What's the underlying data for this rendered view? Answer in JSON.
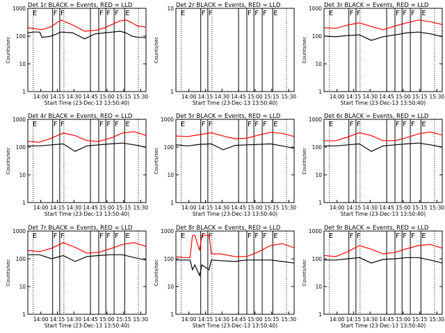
{
  "chart_data": [
    {
      "type": "line",
      "title": "Det 1r BLACK = Events, RED = LLD",
      "flags": [
        "E",
        "F",
        "F",
        "F",
        "F",
        "F",
        "E"
      ],
      "series": [
        {
          "color": "#ff0000",
          "x": [
            0.0,
            0.12,
            0.2,
            0.28,
            0.38,
            0.48,
            0.57,
            0.65,
            0.72,
            0.78,
            0.83,
            0.88,
            0.93,
            0.97,
            1.0
          ],
          "y": [
            200,
            170,
            220,
            380,
            250,
            150,
            160,
            200,
            270,
            350,
            380,
            300,
            230,
            220,
            210
          ]
        },
        {
          "color": "#000000",
          "x": [
            0.0,
            0.05,
            0.1,
            0.12,
            0.2,
            0.28,
            0.38,
            0.48,
            0.57,
            0.65,
            0.72,
            0.78,
            0.83,
            0.88,
            0.93,
            0.97,
            1.0
          ],
          "y": [
            130,
            140,
            140,
            90,
            100,
            140,
            130,
            80,
            120,
            130,
            140,
            150,
            130,
            100,
            90,
            90,
            85
          ]
        }
      ]
    },
    {
      "type": "line",
      "title": "Det 2r BLACK = Events, RED = LLD",
      "flags": [
        "E",
        "F",
        "F",
        "F",
        "F",
        "F",
        "E"
      ],
      "series": []
    },
    {
      "type": "line",
      "title": "Det 3r BLACK = Events, RED = LLD",
      "flags": [
        "E",
        "F",
        "F",
        "F",
        "F",
        "F",
        "E"
      ],
      "series": [
        {
          "color": "#ff0000",
          "x": [
            0.0,
            0.1,
            0.2,
            0.3,
            0.4,
            0.5,
            0.6,
            0.7,
            0.8,
            0.9,
            1.0
          ],
          "y": [
            200,
            190,
            250,
            300,
            220,
            170,
            230,
            300,
            380,
            330,
            260
          ]
        },
        {
          "color": "#000000",
          "x": [
            0.0,
            0.1,
            0.2,
            0.3,
            0.4,
            0.5,
            0.6,
            0.7,
            0.8,
            0.9,
            1.0
          ],
          "y": [
            100,
            95,
            105,
            110,
            70,
            95,
            110,
            130,
            140,
            120,
            95
          ]
        }
      ]
    },
    {
      "type": "line",
      "title": "Det 4r BLACK = Events, RED = LLD",
      "flags": [
        "E",
        "F",
        "F",
        "F",
        "F",
        "F",
        "E"
      ],
      "series": [
        {
          "color": "#ff0000",
          "x": [
            0.0,
            0.1,
            0.2,
            0.3,
            0.4,
            0.5,
            0.6,
            0.7,
            0.8,
            0.9,
            1.0
          ],
          "y": [
            160,
            150,
            210,
            320,
            260,
            170,
            160,
            210,
            320,
            360,
            260
          ]
        },
        {
          "color": "#000000",
          "x": [
            0.0,
            0.1,
            0.2,
            0.3,
            0.4,
            0.5,
            0.6,
            0.7,
            0.8,
            0.9,
            1.0
          ],
          "y": [
            110,
            110,
            120,
            130,
            70,
            110,
            120,
            130,
            140,
            120,
            100
          ]
        }
      ]
    },
    {
      "type": "line",
      "title": "Det 5r BLACK = Events, RED = LLD",
      "flags": [
        "E",
        "F",
        "F",
        "F",
        "F",
        "F",
        "E"
      ],
      "series": [
        {
          "color": "#ff0000",
          "x": [
            0.0,
            0.1,
            0.2,
            0.3,
            0.4,
            0.5,
            0.6,
            0.7,
            0.8,
            0.9,
            1.0
          ],
          "y": [
            250,
            240,
            280,
            330,
            250,
            200,
            210,
            270,
            340,
            310,
            240
          ]
        },
        {
          "color": "#000000",
          "x": [
            0.0,
            0.1,
            0.2,
            0.3,
            0.4,
            0.5,
            0.6,
            0.7,
            0.8,
            0.9,
            1.0
          ],
          "y": [
            120,
            110,
            125,
            130,
            80,
            115,
            120,
            125,
            130,
            110,
            90
          ]
        }
      ]
    },
    {
      "type": "line",
      "title": "Det 6r BLACK = Events, RED = LLD",
      "flags": [
        "E",
        "F",
        "F",
        "F",
        "F",
        "F",
        "E"
      ],
      "series": [
        {
          "color": "#ff0000",
          "x": [
            0.0,
            0.1,
            0.2,
            0.3,
            0.4,
            0.5,
            0.6,
            0.7,
            0.8,
            0.9,
            1.0
          ],
          "y": [
            170,
            170,
            230,
            330,
            260,
            170,
            170,
            220,
            300,
            350,
            270
          ]
        },
        {
          "color": "#000000",
          "x": [
            0.0,
            0.1,
            0.2,
            0.3,
            0.4,
            0.5,
            0.6,
            0.7,
            0.8,
            0.9,
            1.0
          ],
          "y": [
            110,
            110,
            120,
            130,
            70,
            110,
            120,
            130,
            140,
            120,
            100
          ]
        }
      ]
    },
    {
      "type": "line",
      "title": "Det 7r BLACK = Events, RED = LLD",
      "flags": [
        "E",
        "F",
        "F",
        "F",
        "F",
        "F",
        "E"
      ],
      "series": [
        {
          "color": "#ff0000",
          "x": [
            0.0,
            0.1,
            0.2,
            0.3,
            0.4,
            0.5,
            0.6,
            0.7,
            0.8,
            0.9,
            1.0
          ],
          "y": [
            200,
            180,
            240,
            380,
            260,
            160,
            170,
            230,
            330,
            380,
            280
          ]
        },
        {
          "color": "#000000",
          "x": [
            0.0,
            0.1,
            0.2,
            0.3,
            0.4,
            0.5,
            0.6,
            0.7,
            0.8,
            0.9,
            1.0
          ],
          "y": [
            140,
            140,
            100,
            130,
            80,
            120,
            130,
            140,
            140,
            110,
            90
          ]
        }
      ]
    },
    {
      "type": "line",
      "title": "Det 8r BLACK = Events, RED = LLD",
      "flags": [
        "E",
        "F",
        "F",
        "F",
        "F",
        "F",
        "E"
      ],
      "series": [
        {
          "color": "#ff0000",
          "x": [
            0.0,
            0.06,
            0.12,
            0.14,
            0.16,
            0.2,
            0.22,
            0.28,
            0.3,
            0.38,
            0.5,
            0.6,
            0.7,
            0.8,
            0.9,
            1.0
          ],
          "y": [
            120,
            110,
            110,
            700,
            700,
            200,
            700,
            700,
            150,
            150,
            120,
            120,
            180,
            300,
            350,
            250
          ]
        },
        {
          "color": "#000000",
          "x": [
            0.0,
            0.06,
            0.12,
            0.14,
            0.16,
            0.2,
            0.22,
            0.28,
            0.3,
            0.38,
            0.5,
            0.6,
            0.7,
            0.8,
            0.9,
            1.0
          ],
          "y": [
            90,
            90,
            90,
            40,
            60,
            25,
            60,
            40,
            90,
            85,
            80,
            90,
            90,
            90,
            80,
            70
          ]
        }
      ]
    },
    {
      "type": "line",
      "title": "Det 9r BLACK = Events, RED = LLD",
      "flags": [
        "E",
        "F",
        "F",
        "F",
        "F",
        "F",
        "E"
      ],
      "series": [
        {
          "color": "#ff0000",
          "x": [
            0.0,
            0.1,
            0.2,
            0.3,
            0.4,
            0.5,
            0.6,
            0.7,
            0.8,
            0.9,
            1.0
          ],
          "y": [
            130,
            120,
            180,
            300,
            220,
            150,
            170,
            230,
            300,
            330,
            240
          ]
        },
        {
          "color": "#000000",
          "x": [
            0.0,
            0.1,
            0.2,
            0.3,
            0.4,
            0.5,
            0.6,
            0.7,
            0.8,
            0.9,
            1.0
          ],
          "y": [
            90,
            90,
            100,
            110,
            70,
            95,
            100,
            110,
            110,
            90,
            70
          ]
        }
      ]
    }
  ],
  "xlabel": "Start Time (23-Dec-13 13:50:40)",
  "ylabel": "Counts/sec",
  "xticks": [
    "14:00",
    "14:15",
    "14:30",
    "14:45",
    "15:00",
    "15:15",
    "15:30"
  ],
  "yticks_log": [
    "1",
    "10",
    "100",
    "1000"
  ],
  "yticks_lin": [
    "1",
    "10"
  ]
}
